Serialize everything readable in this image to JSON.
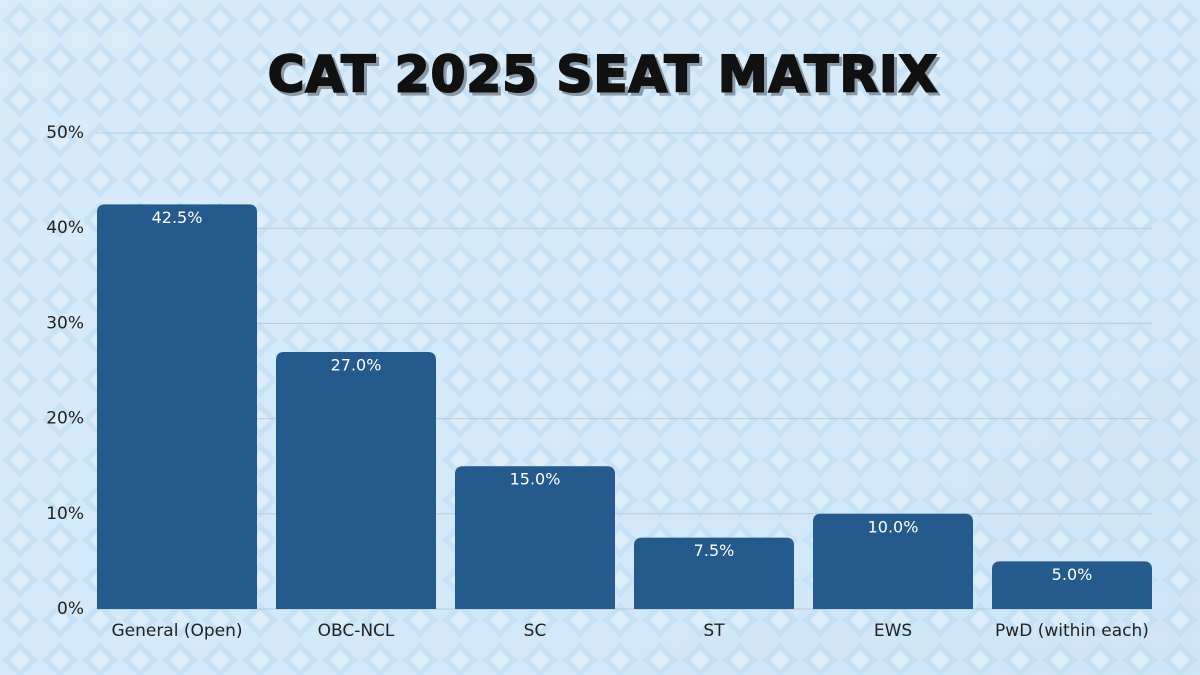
{
  "chart_data": {
    "type": "bar",
    "title": "CAT 2025 SEAT MATRIX",
    "categories": [
      "General (Open)",
      "OBC-NCL",
      "SC",
      "ST",
      "EWS",
      "PwD (within each)"
    ],
    "values": [
      42.5,
      27.0,
      15.0,
      7.5,
      10.0,
      5.0
    ],
    "value_labels": [
      "42.5%",
      "27.0%",
      "15.0%",
      "7.5%",
      "10.0%",
      "5.0%"
    ],
    "color": "#245a8c",
    "ylim": [
      0,
      50
    ],
    "yticks": [
      {
        "value": 0,
        "label": "0%"
      },
      {
        "value": 10,
        "label": "10%"
      },
      {
        "value": 20,
        "label": "20%"
      },
      {
        "value": 30,
        "label": "30%"
      },
      {
        "value": 40,
        "label": "40%"
      },
      {
        "value": 50,
        "label": "50%"
      }
    ],
    "grid": true
  }
}
